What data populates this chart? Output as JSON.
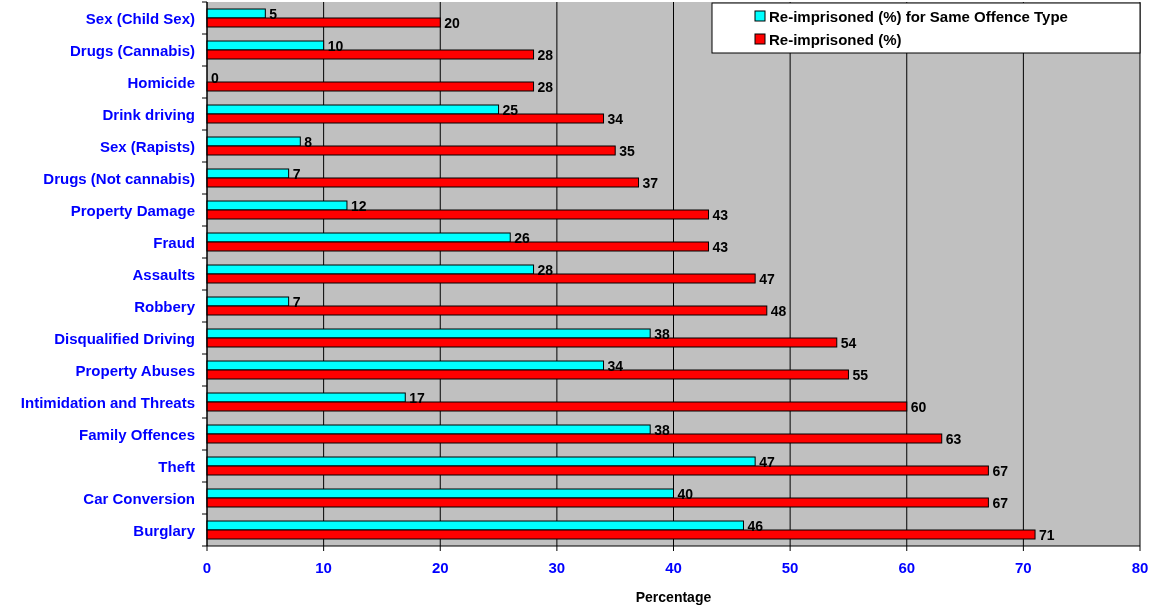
{
  "chart_data": {
    "type": "bar",
    "orientation": "horizontal",
    "xlabel": "Percentage",
    "categories": [
      "Sex (Child Sex)",
      "Drugs (Cannabis)",
      "Homicide",
      "Drink driving",
      "Sex (Rapists)",
      "Drugs (Not cannabis)",
      "Property Damage",
      "Fraud",
      "Assaults",
      "Robbery",
      "Disqualified Driving",
      "Property Abuses",
      "Intimidation and Threats",
      "Family Offences",
      "Theft",
      "Car Conversion",
      "Burglary"
    ],
    "series": [
      {
        "name": "Re-imprisoned (%) for Same Offence Type",
        "color": "#00ffff",
        "values": [
          5,
          10,
          0,
          25,
          8,
          7,
          12,
          26,
          28,
          7,
          38,
          34,
          17,
          38,
          47,
          40,
          46
        ]
      },
      {
        "name": "Re-imprisoned (%)",
        "color": "#ff0000",
        "values": [
          20,
          28,
          28,
          34,
          35,
          37,
          43,
          43,
          47,
          48,
          54,
          55,
          60,
          63,
          67,
          67,
          71
        ]
      }
    ],
    "xlim": [
      0,
      80
    ],
    "xticks": [
      0,
      10,
      20,
      30,
      40,
      50,
      60,
      70,
      80
    ],
    "grid": "x",
    "legend": "top right",
    "data_labels": true
  }
}
